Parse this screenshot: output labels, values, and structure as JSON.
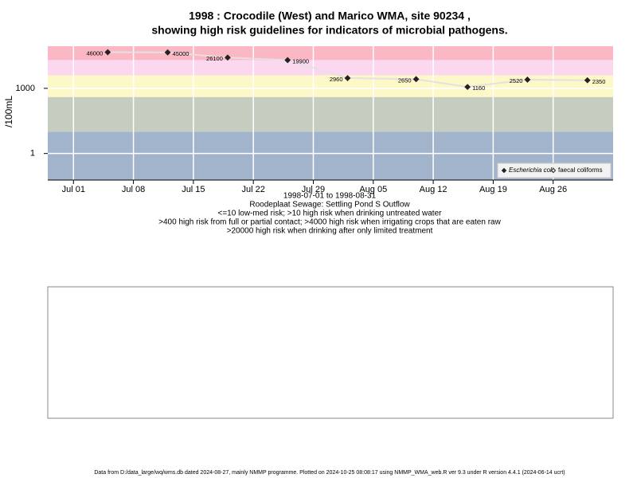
{
  "chart_data": {
    "type": "line",
    "title": "1998 : Crocodile (West) and Marico WMA, site 90234 ,",
    "subtitle": "showing high risk guidelines for indicators of microbial pathogens.",
    "y_label": "/100mL",
    "x_label_lines": [
      "1998-07-01 to 1998-08-31",
      "Roodeplaat Sewage: Settling Pond S Outflow",
      "<=10 low-med risk; >10 high risk when drinking untreated water",
      ">400 high risk from full or partial contact; >4000 high risk when irrigating crops that are eaten raw",
      ">20000 high risk when drinking after only limited treatment"
    ],
    "footer": "Data from D:/data_large/wq/wms.db dated 2024-08-27, mainly NMMP programme. Plotted on 2024-10-25 08:08:17 using NMMP_WMA_web.R ver 9.3 under R version 4.4.1 (2024-06-14 ucrt)",
    "x": [
      "1998-07-05",
      "1998-07-12",
      "1998-07-19",
      "1998-07-26",
      "1998-08-02",
      "1998-08-10",
      "1998-08-16",
      "1998-08-23",
      "1998-08-30"
    ],
    "series": [
      {
        "name": "Escherichia coli",
        "color": "#222222",
        "values": [
          46000,
          45000,
          26100,
          19900,
          2960,
          2650,
          1160,
          2520,
          2350
        ]
      },
      {
        "name": "faecal coliforms",
        "color": "#222222",
        "values": [
          null,
          null,
          null,
          null,
          null,
          null,
          null,
          null,
          null
        ]
      }
    ],
    "xlim": [
      "1998-06-28",
      "1998-09-02"
    ],
    "xticks": [
      {
        "value": "1998-07-01",
        "label": "Jul 01"
      },
      {
        "value": "1998-07-08",
        "label": "Jul 08"
      },
      {
        "value": "1998-07-15",
        "label": "Jul 15"
      },
      {
        "value": "1998-07-22",
        "label": "Jul 22"
      },
      {
        "value": "1998-07-29",
        "label": "Jul 29"
      },
      {
        "value": "1998-08-05",
        "label": "Aug 05"
      },
      {
        "value": "1998-08-12",
        "label": "Aug 12"
      },
      {
        "value": "1998-08-19",
        "label": "Aug 19"
      },
      {
        "value": "1998-08-26",
        "label": "Aug 26"
      }
    ],
    "ylim": [
      0.06,
      87000
    ],
    "yticks": [
      1,
      1000
    ],
    "log_y": true,
    "grid": true,
    "legend": "bottom-right",
    "bands": [
      {
        "from": 0.06,
        "to": 10,
        "color": "#a2b4cc"
      },
      {
        "from": 10,
        "to": 400,
        "color": "#c5cdc0"
      },
      {
        "from": 400,
        "to": 4000,
        "color": "#fdf8c8"
      },
      {
        "from": 4000,
        "to": 20000,
        "color": "#fbd8f0"
      },
      {
        "from": 20000,
        "to": 87000,
        "color": "#fbb8c4"
      }
    ]
  }
}
